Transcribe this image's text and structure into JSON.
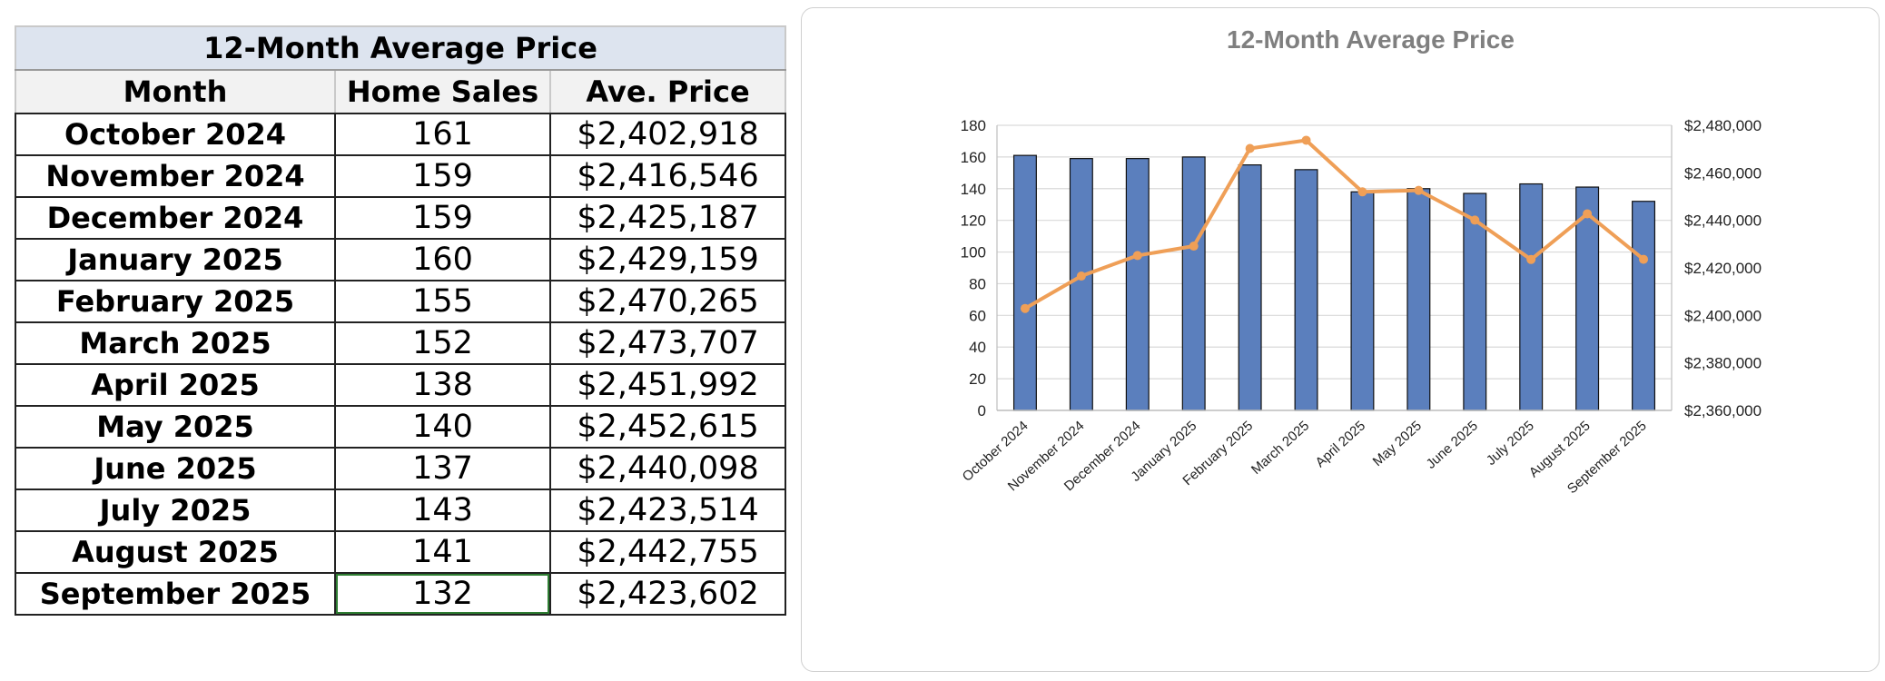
{
  "table": {
    "title": "12-Month Average Price",
    "headers": [
      "Month",
      "Home Sales",
      "Ave. Price"
    ],
    "rows": [
      {
        "month": "October 2024",
        "sales": "161",
        "price": "$2,402,918"
      },
      {
        "month": "November 2024",
        "sales": "159",
        "price": "$2,416,546"
      },
      {
        "month": "December 2024",
        "sales": "159",
        "price": "$2,425,187"
      },
      {
        "month": "January 2025",
        "sales": "160",
        "price": "$2,429,159"
      },
      {
        "month": "February 2025",
        "sales": "155",
        "price": "$2,470,265"
      },
      {
        "month": "March 2025",
        "sales": "152",
        "price": "$2,473,707"
      },
      {
        "month": "April 2025",
        "sales": "138",
        "price": "$2,451,992"
      },
      {
        "month": "May 2025",
        "sales": "140",
        "price": "$2,452,615"
      },
      {
        "month": "June 2025",
        "sales": "137",
        "price": "$2,440,098"
      },
      {
        "month": "July 2025",
        "sales": "143",
        "price": "$2,423,514"
      },
      {
        "month": "August 2025",
        "sales": "141",
        "price": "$2,442,755"
      },
      {
        "month": "September 2025",
        "sales": "132",
        "price": "$2,423,602"
      }
    ]
  },
  "chart_data": {
    "type": "bar",
    "title": "12-Month Average Price",
    "categories": [
      "October 2024",
      "November 2024",
      "December 2024",
      "January 2025",
      "February 2025",
      "March 2025",
      "April 2025",
      "May 2025",
      "June 2025",
      "July 2025",
      "August 2025",
      "September 2025"
    ],
    "series": [
      {
        "type": "bar",
        "axis": "left",
        "color": "#5b7fbd",
        "values": [
          161,
          159,
          159,
          160,
          155,
          152,
          138,
          140,
          137,
          143,
          141,
          132
        ]
      },
      {
        "type": "line",
        "axis": "right",
        "color": "#ef9f57",
        "values": [
          2402918,
          2416546,
          2425187,
          2429159,
          2470265,
          2473707,
          2451992,
          2452615,
          2440098,
          2423514,
          2442755,
          2423602
        ]
      }
    ],
    "y_left": {
      "min": 0,
      "max": 180,
      "ticks": [
        "0",
        "20",
        "40",
        "60",
        "80",
        "100",
        "120",
        "140",
        "160",
        "180"
      ]
    },
    "y_right": {
      "min": 2360000,
      "max": 2480000,
      "ticks": [
        "$2,360,000",
        "$2,380,000",
        "$2,400,000",
        "$2,420,000",
        "$2,440,000",
        "$2,460,000",
        "$2,480,000"
      ]
    },
    "grid": true,
    "legend": "none"
  }
}
